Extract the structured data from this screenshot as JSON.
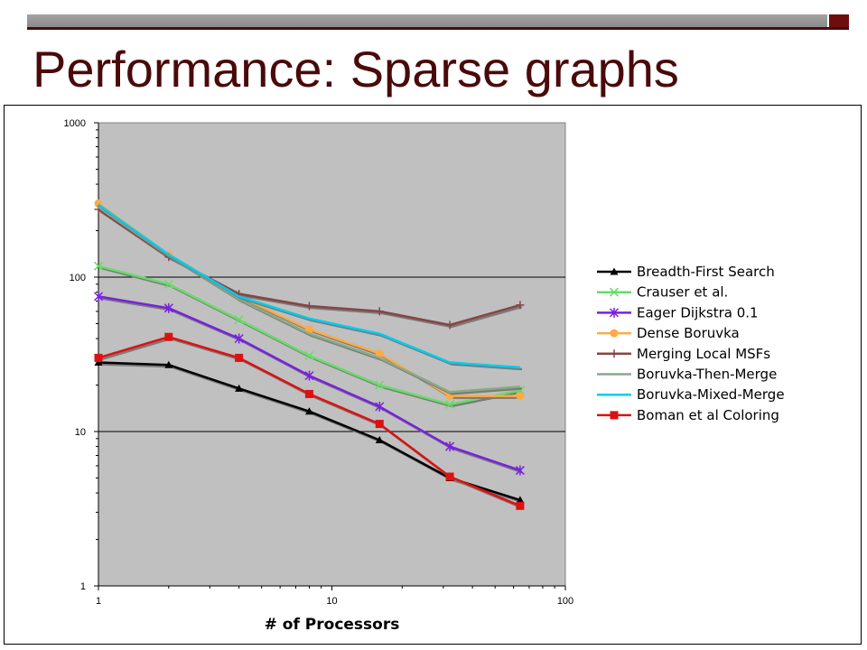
{
  "slide": {
    "title": "Performance: Sparse graphs"
  },
  "colors": {
    "title": "#4a0a0a",
    "plot_bg": "#c0c0c0",
    "top_bar": "#999999"
  },
  "chart_data": {
    "type": "line",
    "title": "",
    "xlabel": "# of Processors",
    "ylabel": "",
    "xscale": "log",
    "yscale": "log",
    "xlim": [
      1,
      100
    ],
    "ylim": [
      1,
      1000
    ],
    "x_tick_labels": [
      "1",
      "10",
      "100"
    ],
    "y_tick_labels": [
      "1",
      "10",
      "100",
      "1000"
    ],
    "grid": "horizontal major",
    "legend": "right",
    "x": [
      1,
      2,
      4,
      8,
      16,
      32,
      64
    ],
    "series": [
      {
        "name": "Breadth-First Search",
        "color": "#000000",
        "marker": "triangle",
        "values": [
          28,
          27,
          19,
          13.5,
          8.8,
          5.0,
          3.6
        ]
      },
      {
        "name": "Crauser et al.",
        "color": "#66dd66",
        "marker": "x",
        "values": [
          118,
          90,
          53,
          31,
          20,
          15,
          18.5
        ]
      },
      {
        "name": "Eager Dijkstra 0.1",
        "color": "#7722dd",
        "marker": "star",
        "values": [
          75,
          63,
          40,
          23,
          14.5,
          8.0,
          5.6
        ]
      },
      {
        "name": "Dense Boruvka",
        "color": "#ffaa44",
        "marker": "circle",
        "values": [
          300,
          140,
          75,
          46,
          32,
          17,
          17
        ]
      },
      {
        "name": "Merging Local MSFs",
        "color": "#884444",
        "marker": "plus",
        "values": [
          275,
          135,
          78,
          65,
          60,
          49,
          66
        ]
      },
      {
        "name": "Boruvka-Then-Merge",
        "color": "#88aa88",
        "marker": "none",
        "values": [
          285,
          138,
          72,
          43,
          30,
          18,
          19.5
        ]
      },
      {
        "name": "Boruvka-Mixed-Merge",
        "color": "#00ccee",
        "marker": "none",
        "values": [
          295,
          140,
          75,
          54,
          43,
          28,
          26
        ]
      },
      {
        "name": "Boman et al Coloring",
        "color": "#dd1111",
        "marker": "square",
        "values": [
          30,
          41,
          30,
          17.5,
          11.2,
          5.1,
          3.3
        ]
      }
    ]
  }
}
